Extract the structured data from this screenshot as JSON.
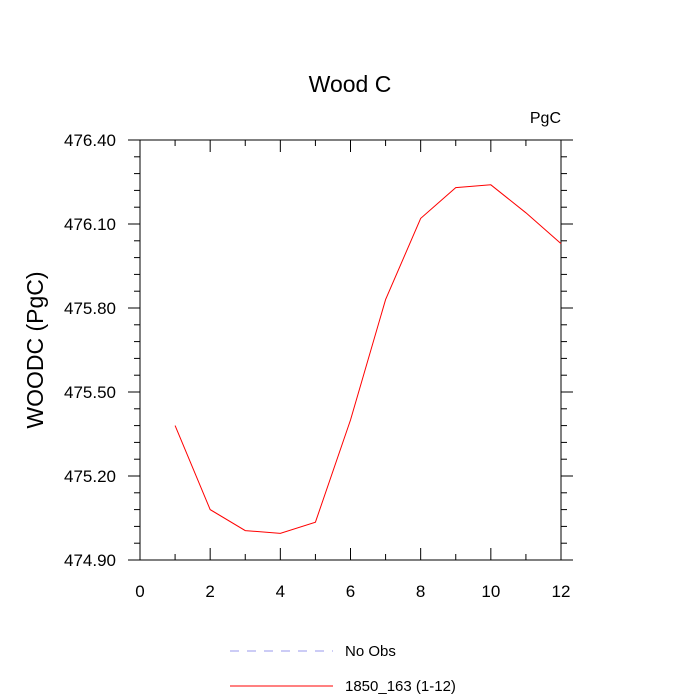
{
  "chart_data": {
    "type": "line",
    "title": "Wood C",
    "units_label": "PgC",
    "xlabel": "",
    "ylabel": "WOODC  (PgC)",
    "xlim": [
      0,
      12
    ],
    "ylim": [
      474.9,
      476.4
    ],
    "xticks": [
      0,
      2,
      4,
      6,
      8,
      10,
      12
    ],
    "xtick_labels": [
      "0",
      "2",
      "4",
      "6",
      "8",
      "10",
      "12"
    ],
    "yticks": [
      474.9,
      475.2,
      475.5,
      475.8,
      476.1,
      476.4
    ],
    "ytick_labels": [
      "474.90",
      "475.20",
      "475.50",
      "475.80",
      "476.10",
      "476.40"
    ],
    "grid": false,
    "legend_position": "bottom",
    "series": [
      {
        "name": "1850_163 (1-12)",
        "color": "#ff0000",
        "dash": "solid",
        "x": [
          1,
          2,
          3,
          4,
          5,
          6,
          7,
          8,
          9,
          10,
          11,
          12
        ],
        "y": [
          475.38,
          475.08,
          475.005,
          474.995,
          475.035,
          475.4,
          475.83,
          476.12,
          476.23,
          476.24,
          476.14,
          476.03
        ]
      }
    ],
    "legend": [
      {
        "label": "No Obs",
        "color": "#9999ee",
        "dash": "dashed"
      },
      {
        "label": "1850_163 (1-12)",
        "color": "#ff0000",
        "dash": "solid"
      }
    ]
  }
}
